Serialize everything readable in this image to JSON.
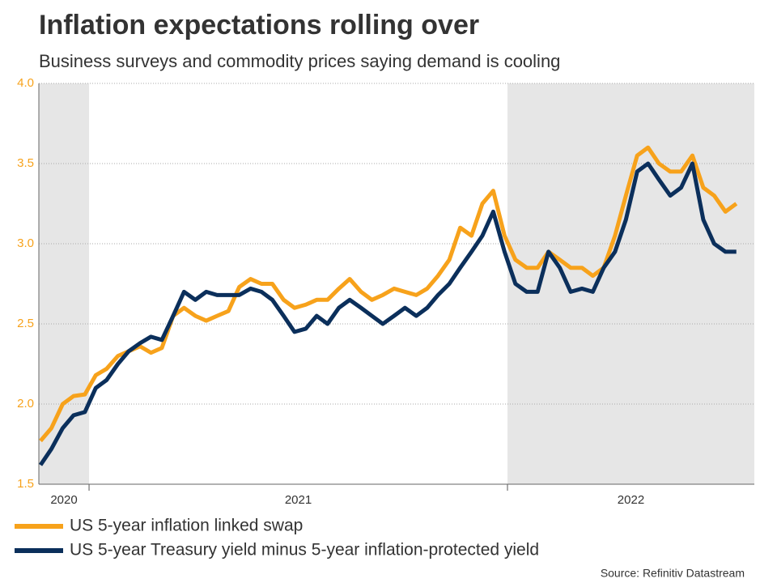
{
  "chart_data": {
    "type": "line",
    "title": "Inflation expectations rolling over",
    "subtitle": "Business surveys and commodity prices saying demand is cooling",
    "source": "Source: Refinitiv Datastream",
    "x": [
      2020.884,
      2020.91,
      2020.937,
      2020.963,
      2020.99,
      2021.016,
      2021.042,
      2021.069,
      2021.095,
      2021.122,
      2021.148,
      2021.174,
      2021.201,
      2021.227,
      2021.254,
      2021.28,
      2021.306,
      2021.333,
      2021.359,
      2021.386,
      2021.412,
      2021.438,
      2021.465,
      2021.491,
      2021.518,
      2021.544,
      2021.57,
      2021.597,
      2021.623,
      2021.65,
      2021.676,
      2021.702,
      2021.729,
      2021.755,
      2021.782,
      2021.808,
      2021.834,
      2021.861,
      2021.887,
      2021.914,
      2021.94,
      2021.966,
      2021.993,
      2022.019,
      2022.046,
      2022.072,
      2022.098,
      2022.125,
      2022.151,
      2022.178,
      2022.204,
      2022.23,
      2022.257,
      2022.283,
      2022.31,
      2022.336,
      2022.362,
      2022.389,
      2022.415,
      2022.442,
      2022.468,
      2022.494,
      2022.521,
      2022.547
    ],
    "series": [
      {
        "name": "US 5-year inflation linked swap",
        "color": "#f7a21b",
        "values": [
          1.77,
          1.85,
          2.0,
          2.05,
          2.06,
          2.18,
          2.22,
          2.3,
          2.33,
          2.36,
          2.32,
          2.35,
          2.55,
          2.6,
          2.55,
          2.52,
          2.55,
          2.58,
          2.73,
          2.78,
          2.75,
          2.75,
          2.65,
          2.6,
          2.62,
          2.65,
          2.65,
          2.72,
          2.78,
          2.7,
          2.65,
          2.68,
          2.72,
          2.7,
          2.68,
          2.72,
          2.8,
          2.9,
          3.1,
          3.05,
          3.25,
          3.33,
          3.05,
          2.9,
          2.85,
          2.85,
          2.95,
          2.9,
          2.85,
          2.85,
          2.8,
          2.85,
          3.05,
          3.3,
          3.55,
          3.6,
          3.5,
          3.45,
          3.45,
          3.55,
          3.35,
          3.3,
          3.2,
          3.25
        ]
      },
      {
        "name": "US 5-year Treasury yield minus 5-year inflation-protected yield",
        "color": "#0b2f5b",
        "values": [
          1.62,
          1.72,
          1.85,
          1.93,
          1.95,
          2.1,
          2.15,
          2.25,
          2.33,
          2.38,
          2.42,
          2.4,
          2.55,
          2.7,
          2.65,
          2.7,
          2.68,
          2.68,
          2.68,
          2.72,
          2.7,
          2.65,
          2.55,
          2.45,
          2.47,
          2.55,
          2.5,
          2.6,
          2.65,
          2.6,
          2.55,
          2.5,
          2.55,
          2.6,
          2.55,
          2.6,
          2.68,
          2.75,
          2.85,
          2.95,
          3.05,
          3.2,
          2.95,
          2.75,
          2.7,
          2.7,
          2.95,
          2.85,
          2.7,
          2.72,
          2.7,
          2.85,
          2.95,
          3.15,
          3.45,
          3.5,
          3.4,
          3.3,
          3.35,
          3.5,
          3.15,
          3.0,
          2.95,
          2.95
        ]
      }
    ],
    "xlim": [
      2020.88,
      2022.59
    ],
    "ylim": [
      1.5,
      4.0
    ],
    "yticks": [
      1.5,
      {
        "value": 2,
        "label": "2.0"
      },
      2.5,
      {
        "value": 3,
        "label": "3.0"
      },
      3.5,
      {
        "value": 4,
        "label": "4.0"
      }
    ],
    "year_bands": [
      {
        "label": "2020",
        "start": 2020,
        "end": 2021,
        "shaded": true
      },
      {
        "label": "2021",
        "start": 2021,
        "end": 2022,
        "shaded": false
      },
      {
        "label": "2022",
        "start": 2022,
        "end": 2023,
        "shaded": true
      }
    ],
    "grid": true
  }
}
